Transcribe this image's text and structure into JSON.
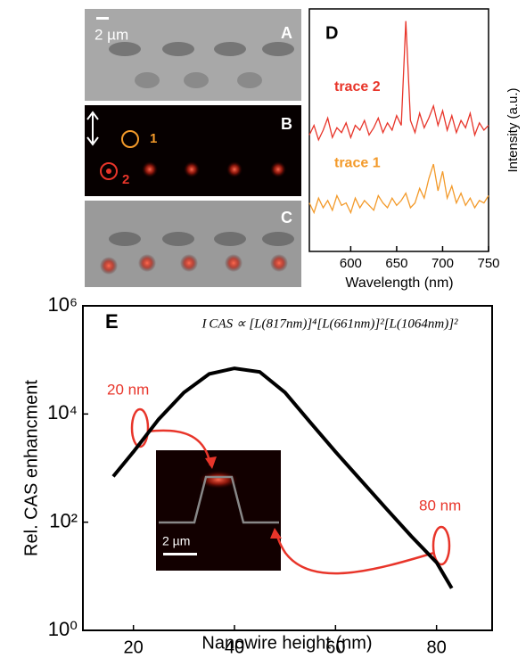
{
  "image_panels": {
    "scale_bar": "2 µm",
    "labels": [
      "A",
      "B",
      "C"
    ],
    "markers": [
      "1",
      "2"
    ]
  },
  "chart_data": [
    {
      "type": "line",
      "panel": "D",
      "xlabel": "Wavelength (nm)",
      "ylabel": "Intensity (a.u.)",
      "xlim": [
        555,
        750
      ],
      "xticks": [
        600,
        650,
        700,
        750
      ],
      "ylim": [
        0,
        100
      ],
      "x": [
        555,
        560,
        565,
        570,
        575,
        580,
        585,
        590,
        595,
        600,
        605,
        610,
        615,
        620,
        625,
        630,
        635,
        640,
        645,
        650,
        655,
        660,
        665,
        670,
        675,
        680,
        685,
        690,
        695,
        700,
        705,
        710,
        715,
        720,
        725,
        730,
        735,
        740,
        745,
        750
      ],
      "series": [
        {
          "name": "trace 2",
          "color": "#e8352a",
          "values": [
            48,
            52,
            46,
            50,
            55,
            47,
            51,
            49,
            53,
            47,
            52,
            50,
            54,
            48,
            51,
            55,
            49,
            53,
            50,
            56,
            52,
            95,
            54,
            49,
            57,
            51,
            55,
            60,
            52,
            58,
            50,
            56,
            49,
            54,
            51,
            57,
            48,
            53,
            50,
            52
          ]
        },
        {
          "name": "trace 1",
          "color": "#f39a2a",
          "values": [
            20,
            16,
            22,
            18,
            21,
            17,
            23,
            19,
            20,
            16,
            22,
            18,
            21,
            19,
            17,
            23,
            20,
            18,
            22,
            19,
            21,
            24,
            18,
            20,
            26,
            22,
            30,
            36,
            25,
            33,
            22,
            27,
            20,
            24,
            19,
            22,
            18,
            21,
            20,
            23
          ]
        }
      ]
    },
    {
      "type": "line",
      "panel": "E",
      "xlabel": "Nanowire height (nm)",
      "ylabel": "Rel. CAS enhancment",
      "formula": "I CAS ∝ [L(817nm)]⁴[L(661nm)]²[L(1064nm)]²",
      "log_y": true,
      "xlim": [
        10,
        91
      ],
      "xticks": [
        20,
        40,
        60,
        80
      ],
      "ylim": [
        1,
        1000000
      ],
      "yticks": [
        {
          "value": 1,
          "label": "10⁰"
        },
        {
          "value": 100,
          "label": "10²"
        },
        {
          "value": 10000,
          "label": "10⁴"
        },
        {
          "value": 1000000,
          "label": "10⁶"
        }
      ],
      "annotations": [
        "20 nm",
        "80 nm"
      ],
      "inset_scale_bar": "2 µm",
      "x": [
        16,
        20,
        25,
        30,
        35,
        40,
        45,
        50,
        55,
        60,
        65,
        70,
        75,
        80,
        83
      ],
      "series": [
        {
          "name": null,
          "color": "#000000",
          "values": [
            700,
            2000,
            8000,
            25000,
            55000,
            70000,
            60000,
            25000,
            7000,
            2000,
            600,
            180,
            55,
            18,
            6
          ]
        }
      ]
    }
  ]
}
